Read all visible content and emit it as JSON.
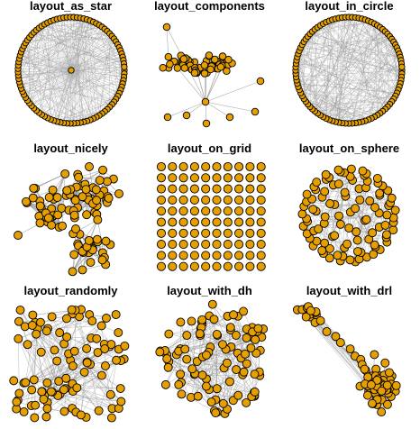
{
  "figure": {
    "node_fill": "#E69F00",
    "node_stroke": "#000000",
    "edge_color": "#999999",
    "panels": [
      {
        "key": "as_star",
        "title": "layout_as_star"
      },
      {
        "key": "components",
        "title": "layout_components"
      },
      {
        "key": "in_circle",
        "title": "layout_in_circle"
      },
      {
        "key": "nicely",
        "title": "layout_nicely"
      },
      {
        "key": "on_grid",
        "title": "layout_on_grid"
      },
      {
        "key": "on_sphere",
        "title": "layout_on_sphere"
      },
      {
        "key": "randomly",
        "title": "layout_randomly"
      },
      {
        "key": "with_dh",
        "title": "layout_with_dh"
      },
      {
        "key": "with_drl",
        "title": "layout_with_drl"
      }
    ]
  }
}
